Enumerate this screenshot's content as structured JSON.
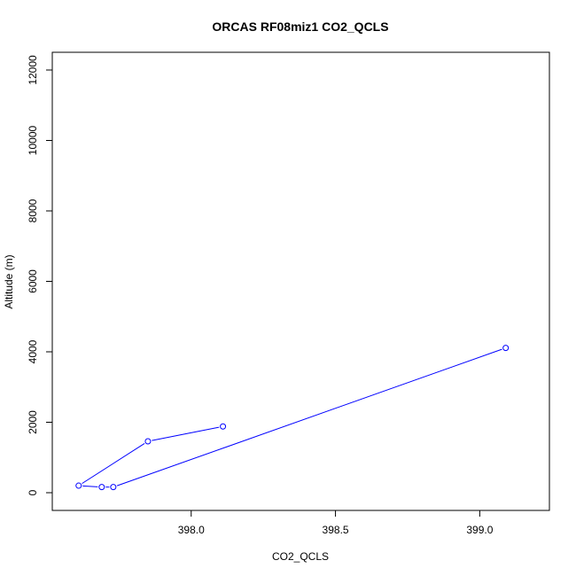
{
  "chart_data": {
    "type": "line",
    "title": "ORCAS RF08miz1 CO2_QCLS",
    "xlabel": "CO2_QCLS",
    "ylabel": "Altitude (m)",
    "xlim": [
      397.58,
      399.18
    ],
    "ylim": [
      0,
      12000
    ],
    "x_ticks": [
      398.0,
      398.5,
      399.0
    ],
    "x_tick_labels": [
      "398.0",
      "398.5",
      "399.0"
    ],
    "y_ticks": [
      0,
      2000,
      4000,
      6000,
      8000,
      10000,
      12000
    ],
    "y_tick_labels": [
      "0",
      "2000",
      "4000",
      "6000",
      "8000",
      "10000",
      "12000"
    ],
    "grid": false,
    "legend": "none",
    "series": [
      {
        "color": "#0000ff",
        "marker": "open-circle",
        "points": [
          {
            "x": 398.11,
            "y": 1880
          },
          {
            "x": 397.85,
            "y": 1460
          },
          {
            "x": 397.61,
            "y": 200
          },
          {
            "x": 397.69,
            "y": 160
          },
          {
            "x": 397.73,
            "y": 160
          },
          {
            "x": 399.09,
            "y": 4110
          }
        ]
      }
    ]
  }
}
